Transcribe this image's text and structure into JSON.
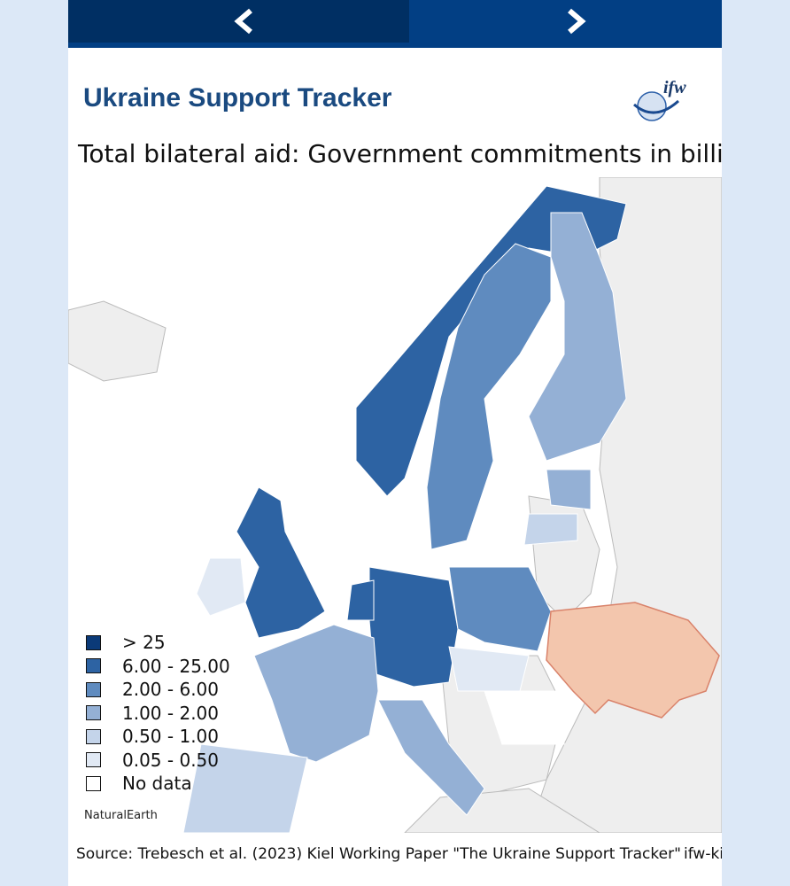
{
  "header": {
    "title": "Ukraine Support Tracker",
    "logo": "ifw"
  },
  "map": {
    "subtitle": "Total bilateral aid: Government commitments  in billion €",
    "legend": [
      {
        "label": "> 25",
        "color": "#0b3a78"
      },
      {
        "label": "6.00 - 25.00",
        "color": "#2d63a3"
      },
      {
        "label": "2.00 - 6.00",
        "color": "#5f8bbf"
      },
      {
        "label": "1.00 - 2.00",
        "color": "#94b0d5"
      },
      {
        "label": "0.50 - 1.00",
        "color": "#c4d4ea"
      },
      {
        "label": "0.05 - 0.50",
        "color": "#e1e9f4"
      },
      {
        "label": "No data",
        "color": "#ffffff"
      }
    ],
    "credit": "NaturalEarth"
  },
  "footer": {
    "source": "Source: Trebesch et al. (2023) Kiel Working Paper \"The Ukraine Support Tracker\"",
    "site": "ifw-ki"
  }
}
